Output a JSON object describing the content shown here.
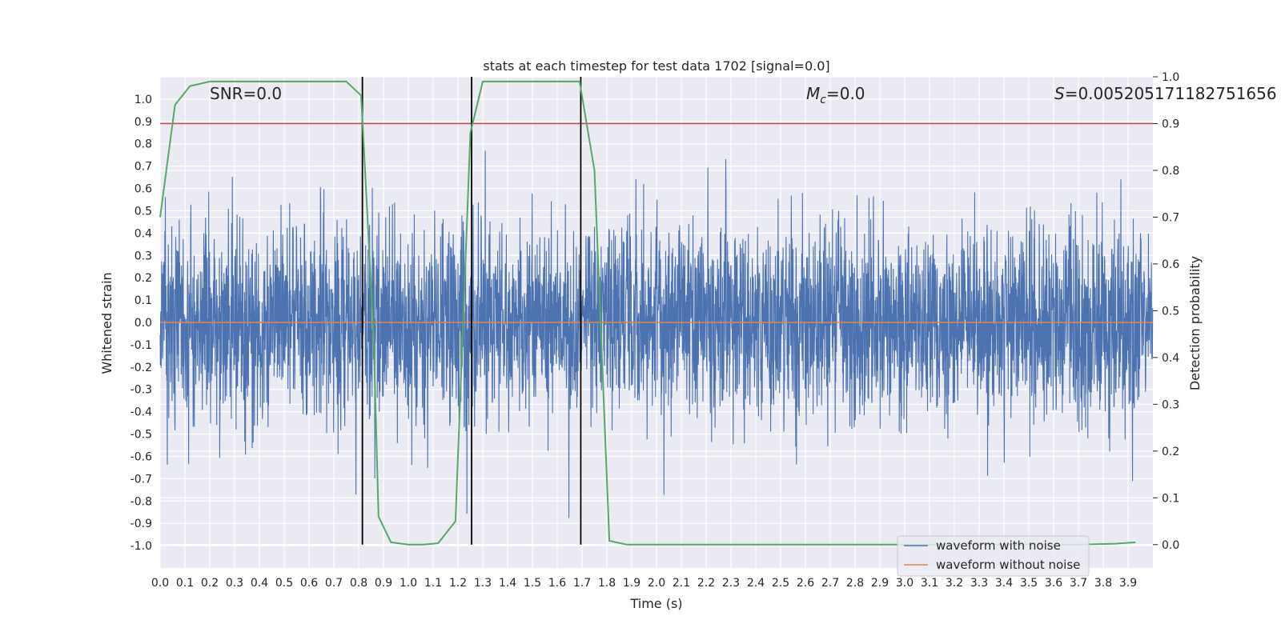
{
  "chart_data": {
    "type": "line",
    "title": "stats at each timestep for test data 1702 [signal=0.0]",
    "xlabel": "Time (s)",
    "ylabel": "Whitened strain",
    "y2label": "Detection probability",
    "xlim": [
      0.0,
      4.0
    ],
    "ylim": [
      -1.1,
      1.1
    ],
    "y2lim": [
      -0.05,
      1.0
    ],
    "xticks": [
      "0.0",
      "0.1",
      "0.2",
      "0.3",
      "0.4",
      "0.5",
      "0.6",
      "0.7",
      "0.8",
      "0.9",
      "1.0",
      "1.1",
      "1.2",
      "1.3",
      "1.4",
      "1.5",
      "1.6",
      "1.7",
      "1.8",
      "1.9",
      "2.0",
      "2.1",
      "2.2",
      "2.3",
      "2.4",
      "2.5",
      "2.6",
      "2.7",
      "2.8",
      "2.9",
      "3.0",
      "3.1",
      "3.2",
      "3.3",
      "3.4",
      "3.5",
      "3.6",
      "3.7",
      "3.8",
      "3.9"
    ],
    "yticks": [
      "1.0",
      "0.9",
      "0.8",
      "0.7",
      "0.6",
      "0.5",
      "0.4",
      "0.3",
      "0.2",
      "0.1",
      "0.0",
      "-0.1",
      "-0.2",
      "-0.3",
      "-0.4",
      "-0.5",
      "-0.6",
      "-0.7",
      "-0.8",
      "-0.9",
      "-1.0"
    ],
    "y2ticks": [
      "1.0",
      "0.9",
      "0.8",
      "0.7",
      "0.6",
      "0.5",
      "0.4",
      "0.3",
      "0.2",
      "0.1",
      "0.0"
    ],
    "grid": true,
    "legend_position": "lower-right",
    "annotations": {
      "snr": "SNR=0.0",
      "mc_symbol": "M",
      "mc_sub": "c",
      "mc_value": "=0.0",
      "s_symbol": "S",
      "s_value": "=0.005205171182751656"
    },
    "series": [
      {
        "name": "waveform with noise",
        "color": "#4c72b0",
        "kind": "noise",
        "n_points": 4000,
        "amplitude_range": [
          -1.0,
          0.96
        ]
      },
      {
        "name": "waveform without noise",
        "color": "#dd8452",
        "kind": "constant",
        "y": 0.0
      }
    ],
    "threshold": {
      "axis": "y2",
      "y": 0.9,
      "color": "#c44e52"
    },
    "vlines": {
      "x": [
        0.815,
        1.255,
        1.695
      ],
      "color": "#000000",
      "y2_range": [
        0.0,
        1.0
      ]
    },
    "probability": {
      "axis": "y2",
      "color": "#55a868",
      "x": [
        0.0,
        0.06,
        0.12,
        0.2,
        0.3,
        0.4,
        0.5,
        0.6,
        0.7,
        0.75,
        0.81,
        0.86,
        0.88,
        0.93,
        1.0,
        1.06,
        1.12,
        1.19,
        1.25,
        1.3,
        1.4,
        1.5,
        1.6,
        1.69,
        1.75,
        1.81,
        1.88,
        2.0,
        2.5,
        3.0,
        3.5,
        3.7,
        3.85,
        3.93
      ],
      "y": [
        0.7,
        0.94,
        0.98,
        0.99,
        0.99,
        0.99,
        0.99,
        0.99,
        0.99,
        0.99,
        0.96,
        0.45,
        0.06,
        0.005,
        0.0,
        0.0,
        0.003,
        0.05,
        0.88,
        0.99,
        0.99,
        0.99,
        0.99,
        0.99,
        0.8,
        0.008,
        0.0,
        0.0,
        0.0,
        0.0,
        0.0,
        0.0,
        0.002,
        0.005
      ]
    }
  }
}
